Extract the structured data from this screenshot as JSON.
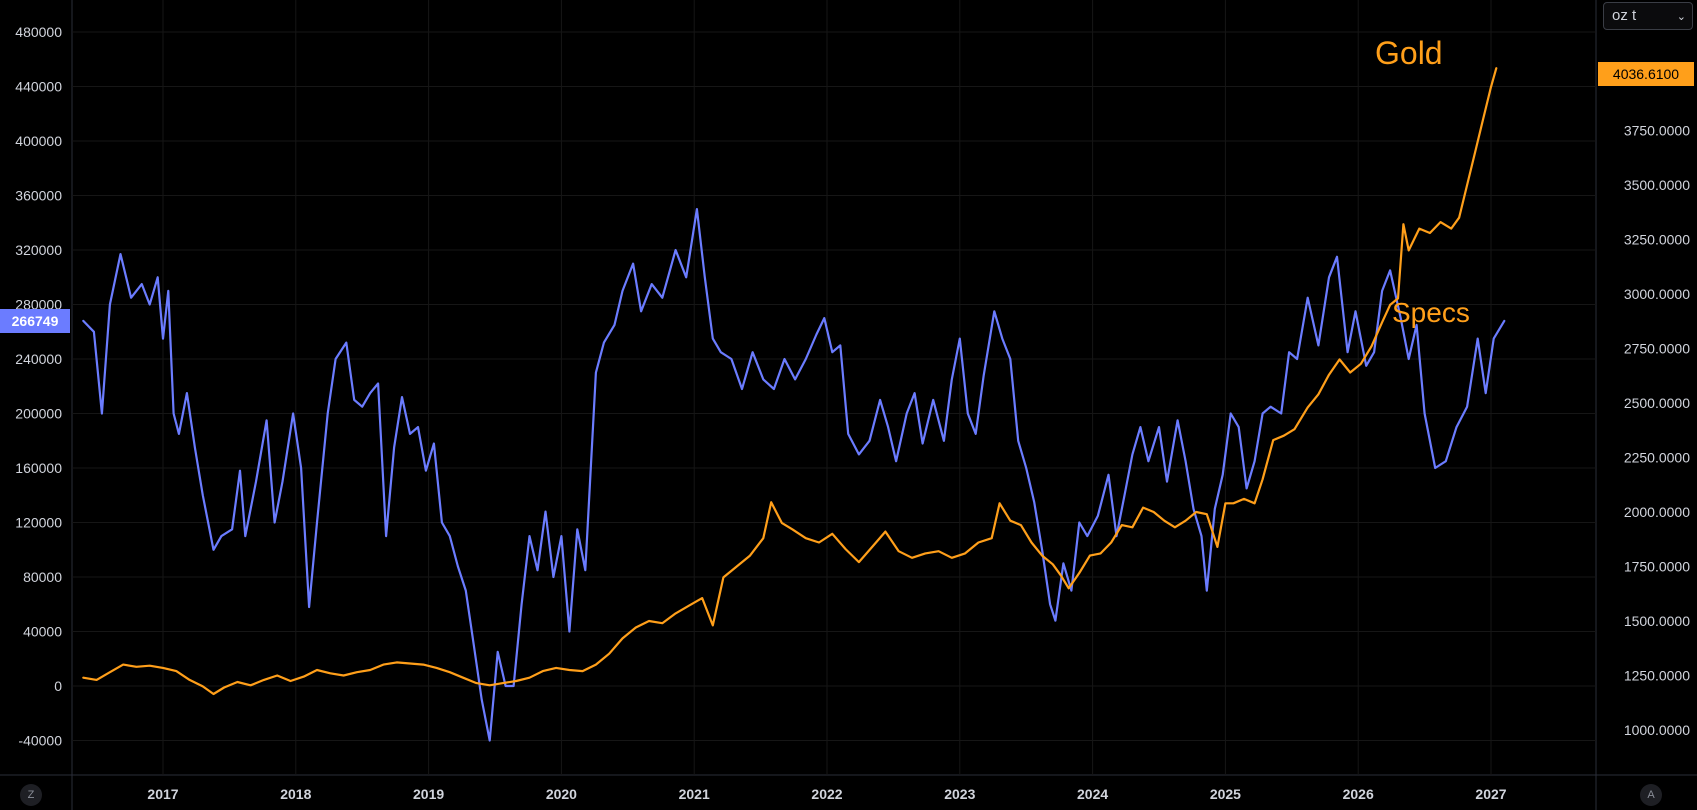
{
  "price_scale": {
    "unit_label": "oz t"
  },
  "annotations": {
    "gold_label": "Gold",
    "specs_label": "Specs"
  },
  "controls": {
    "left_corner": "Z",
    "right_corner": "A"
  },
  "colors": {
    "background": "#000000",
    "gold": "#ff9f1a",
    "specs": "#6b7cff",
    "grid": "#1a1a1a",
    "text": "#d1d4dc"
  },
  "chart_data": {
    "type": "line",
    "x_ticks": [
      "2017",
      "2018",
      "2019",
      "2020",
      "2021",
      "2022",
      "2023",
      "2024",
      "2025",
      "2026",
      "2027"
    ],
    "left_axis": {
      "ticks": [
        "480000",
        "440000",
        "400000",
        "360000",
        "320000",
        "280000",
        "240000",
        "200000",
        "160000",
        "120000",
        "80000",
        "40000",
        "0",
        "-40000"
      ],
      "ylim": [
        -40000,
        480000
      ],
      "last_value_label": "266749"
    },
    "right_axis": {
      "ticks": [
        "3750.0000",
        "3500.0000",
        "3250.0000",
        "3000.0000",
        "2750.0000",
        "2500.0000",
        "2250.0000",
        "2000.0000",
        "1750.0000",
        "1500.0000",
        "1250.0000",
        "1000.0000"
      ],
      "ylim": [
        1000,
        4000
      ],
      "last_value_label": "4036.6100"
    },
    "series": [
      {
        "name": "Specs",
        "axis": "left",
        "points": [
          [
            2016.4,
            268000
          ],
          [
            2016.48,
            260000
          ],
          [
            2016.54,
            200000
          ],
          [
            2016.6,
            280000
          ],
          [
            2016.68,
            317000
          ],
          [
            2016.76,
            285000
          ],
          [
            2016.84,
            295000
          ],
          [
            2016.9,
            280000
          ],
          [
            2016.96,
            300000
          ],
          [
            2017.0,
            255000
          ],
          [
            2017.04,
            290000
          ],
          [
            2017.08,
            200000
          ],
          [
            2017.12,
            185000
          ],
          [
            2017.18,
            215000
          ],
          [
            2017.24,
            175000
          ],
          [
            2017.3,
            140000
          ],
          [
            2017.38,
            100000
          ],
          [
            2017.44,
            110000
          ],
          [
            2017.52,
            115000
          ],
          [
            2017.58,
            158000
          ],
          [
            2017.62,
            110000
          ],
          [
            2017.7,
            150000
          ],
          [
            2017.78,
            195000
          ],
          [
            2017.84,
            120000
          ],
          [
            2017.9,
            150000
          ],
          [
            2017.98,
            200000
          ],
          [
            2018.04,
            160000
          ],
          [
            2018.1,
            58000
          ],
          [
            2018.16,
            120000
          ],
          [
            2018.24,
            200000
          ],
          [
            2018.3,
            240000
          ],
          [
            2018.38,
            252000
          ],
          [
            2018.44,
            210000
          ],
          [
            2018.5,
            205000
          ],
          [
            2018.56,
            215000
          ],
          [
            2018.62,
            222000
          ],
          [
            2018.68,
            110000
          ],
          [
            2018.74,
            175000
          ],
          [
            2018.8,
            212000
          ],
          [
            2018.86,
            185000
          ],
          [
            2018.92,
            190000
          ],
          [
            2018.98,
            158000
          ],
          [
            2019.04,
            178000
          ],
          [
            2019.1,
            120000
          ],
          [
            2019.16,
            110000
          ],
          [
            2019.22,
            88000
          ],
          [
            2019.28,
            70000
          ],
          [
            2019.34,
            30000
          ],
          [
            2019.4,
            -10000
          ],
          [
            2019.46,
            -40000
          ],
          [
            2019.52,
            25000
          ],
          [
            2019.58,
            0
          ],
          [
            2019.64,
            0
          ],
          [
            2019.7,
            60000
          ],
          [
            2019.76,
            110000
          ],
          [
            2019.82,
            85000
          ],
          [
            2019.88,
            128000
          ],
          [
            2019.94,
            80000
          ],
          [
            2020.0,
            110000
          ],
          [
            2020.06,
            40000
          ],
          [
            2020.12,
            115000
          ],
          [
            2020.18,
            85000
          ],
          [
            2020.26,
            230000
          ],
          [
            2020.32,
            252000
          ],
          [
            2020.4,
            265000
          ],
          [
            2020.46,
            290000
          ],
          [
            2020.54,
            310000
          ],
          [
            2020.6,
            275000
          ],
          [
            2020.68,
            295000
          ],
          [
            2020.76,
            285000
          ],
          [
            2020.86,
            320000
          ],
          [
            2020.94,
            300000
          ],
          [
            2021.02,
            350000
          ],
          [
            2021.08,
            300000
          ],
          [
            2021.14,
            255000
          ],
          [
            2021.2,
            245000
          ],
          [
            2021.28,
            240000
          ],
          [
            2021.36,
            218000
          ],
          [
            2021.44,
            245000
          ],
          [
            2021.52,
            225000
          ],
          [
            2021.6,
            218000
          ],
          [
            2021.68,
            240000
          ],
          [
            2021.76,
            225000
          ],
          [
            2021.84,
            240000
          ],
          [
            2021.92,
            258000
          ],
          [
            2021.98,
            270000
          ],
          [
            2022.04,
            245000
          ],
          [
            2022.1,
            250000
          ],
          [
            2022.16,
            185000
          ],
          [
            2022.24,
            170000
          ],
          [
            2022.32,
            180000
          ],
          [
            2022.4,
            210000
          ],
          [
            2022.46,
            190000
          ],
          [
            2022.52,
            165000
          ],
          [
            2022.6,
            200000
          ],
          [
            2022.66,
            215000
          ],
          [
            2022.72,
            178000
          ],
          [
            2022.8,
            210000
          ],
          [
            2022.88,
            180000
          ],
          [
            2022.94,
            225000
          ],
          [
            2023.0,
            255000
          ],
          [
            2023.06,
            200000
          ],
          [
            2023.12,
            185000
          ],
          [
            2023.18,
            228000
          ],
          [
            2023.26,
            275000
          ],
          [
            2023.32,
            255000
          ],
          [
            2023.38,
            240000
          ],
          [
            2023.44,
            180000
          ],
          [
            2023.5,
            160000
          ],
          [
            2023.56,
            135000
          ],
          [
            2023.62,
            100000
          ],
          [
            2023.68,
            60000
          ],
          [
            2023.72,
            48000
          ],
          [
            2023.78,
            90000
          ],
          [
            2023.84,
            70000
          ],
          [
            2023.9,
            120000
          ],
          [
            2023.96,
            110000
          ],
          [
            2024.04,
            125000
          ],
          [
            2024.12,
            155000
          ],
          [
            2024.18,
            110000
          ],
          [
            2024.24,
            140000
          ],
          [
            2024.3,
            170000
          ],
          [
            2024.36,
            190000
          ],
          [
            2024.42,
            165000
          ],
          [
            2024.5,
            190000
          ],
          [
            2024.56,
            150000
          ],
          [
            2024.64,
            195000
          ],
          [
            2024.7,
            165000
          ],
          [
            2024.76,
            130000
          ],
          [
            2024.82,
            110000
          ],
          [
            2024.86,
            70000
          ],
          [
            2024.92,
            130000
          ],
          [
            2024.98,
            155000
          ],
          [
            2025.04,
            200000
          ],
          [
            2025.1,
            190000
          ],
          [
            2025.16,
            145000
          ],
          [
            2025.22,
            165000
          ],
          [
            2025.28,
            200000
          ],
          [
            2025.34,
            205000
          ],
          [
            2025.42,
            200000
          ],
          [
            2025.48,
            245000
          ],
          [
            2025.54,
            240000
          ],
          [
            2025.62,
            285000
          ],
          [
            2025.7,
            250000
          ],
          [
            2025.78,
            300000
          ],
          [
            2025.84,
            315000
          ],
          [
            2025.92,
            245000
          ],
          [
            2025.98,
            275000
          ],
          [
            2026.06,
            235000
          ],
          [
            2026.12,
            245000
          ],
          [
            2026.18,
            290000
          ],
          [
            2026.24,
            305000
          ],
          [
            2026.32,
            270000
          ],
          [
            2026.38,
            240000
          ],
          [
            2026.44,
            265000
          ],
          [
            2026.5,
            200000
          ],
          [
            2026.58,
            160000
          ],
          [
            2026.66,
            165000
          ],
          [
            2026.74,
            190000
          ],
          [
            2026.82,
            205000
          ],
          [
            2026.9,
            255000
          ],
          [
            2026.96,
            215000
          ],
          [
            2027.02,
            255000
          ],
          [
            2027.1,
            268000
          ]
        ]
      },
      {
        "name": "Gold",
        "axis": "right",
        "points": [
          [
            2016.4,
            1240
          ],
          [
            2016.5,
            1230
          ],
          [
            2016.6,
            1265
          ],
          [
            2016.7,
            1300
          ],
          [
            2016.8,
            1290
          ],
          [
            2016.9,
            1295
          ],
          [
            2017.0,
            1285
          ],
          [
            2017.1,
            1270
          ],
          [
            2017.2,
            1230
          ],
          [
            2017.3,
            1200
          ],
          [
            2017.38,
            1165
          ],
          [
            2017.46,
            1195
          ],
          [
            2017.56,
            1220
          ],
          [
            2017.66,
            1205
          ],
          [
            2017.76,
            1230
          ],
          [
            2017.86,
            1250
          ],
          [
            2017.96,
            1225
          ],
          [
            2018.06,
            1245
          ],
          [
            2018.16,
            1275
          ],
          [
            2018.26,
            1260
          ],
          [
            2018.36,
            1250
          ],
          [
            2018.46,
            1265
          ],
          [
            2018.56,
            1275
          ],
          [
            2018.66,
            1300
          ],
          [
            2018.76,
            1310
          ],
          [
            2018.86,
            1305
          ],
          [
            2018.96,
            1300
          ],
          [
            2019.06,
            1285
          ],
          [
            2019.16,
            1265
          ],
          [
            2019.26,
            1240
          ],
          [
            2019.36,
            1215
          ],
          [
            2019.46,
            1205
          ],
          [
            2019.56,
            1215
          ],
          [
            2019.66,
            1225
          ],
          [
            2019.76,
            1240
          ],
          [
            2019.86,
            1270
          ],
          [
            2019.96,
            1285
          ],
          [
            2020.06,
            1275
          ],
          [
            2020.16,
            1270
          ],
          [
            2020.26,
            1300
          ],
          [
            2020.36,
            1350
          ],
          [
            2020.46,
            1420
          ],
          [
            2020.56,
            1470
          ],
          [
            2020.66,
            1500
          ],
          [
            2020.76,
            1490
          ],
          [
            2020.86,
            1535
          ],
          [
            2020.96,
            1570
          ],
          [
            2021.06,
            1605
          ],
          [
            2021.14,
            1480
          ],
          [
            2021.22,
            1700
          ],
          [
            2021.32,
            1750
          ],
          [
            2021.42,
            1800
          ],
          [
            2021.52,
            1880
          ],
          [
            2021.58,
            2045
          ],
          [
            2021.66,
            1950
          ],
          [
            2021.74,
            1920
          ],
          [
            2021.84,
            1880
          ],
          [
            2021.94,
            1860
          ],
          [
            2022.04,
            1900
          ],
          [
            2022.14,
            1830
          ],
          [
            2022.24,
            1770
          ],
          [
            2022.34,
            1840
          ],
          [
            2022.44,
            1910
          ],
          [
            2022.54,
            1820
          ],
          [
            2022.64,
            1790
          ],
          [
            2022.74,
            1810
          ],
          [
            2022.84,
            1820
          ],
          [
            2022.94,
            1790
          ],
          [
            2023.04,
            1810
          ],
          [
            2023.14,
            1860
          ],
          [
            2023.24,
            1880
          ],
          [
            2023.3,
            2040
          ],
          [
            2023.38,
            1960
          ],
          [
            2023.46,
            1940
          ],
          [
            2023.54,
            1860
          ],
          [
            2023.62,
            1800
          ],
          [
            2023.7,
            1760
          ],
          [
            2023.76,
            1710
          ],
          [
            2023.82,
            1650
          ],
          [
            2023.9,
            1720
          ],
          [
            2023.98,
            1800
          ],
          [
            2024.06,
            1810
          ],
          [
            2024.14,
            1860
          ],
          [
            2024.22,
            1940
          ],
          [
            2024.3,
            1930
          ],
          [
            2024.38,
            2020
          ],
          [
            2024.46,
            2000
          ],
          [
            2024.54,
            1960
          ],
          [
            2024.62,
            1930
          ],
          [
            2024.7,
            1960
          ],
          [
            2024.78,
            2000
          ],
          [
            2024.86,
            1990
          ],
          [
            2024.94,
            1840
          ],
          [
            2025.0,
            2040
          ],
          [
            2025.06,
            2040
          ],
          [
            2025.14,
            2060
          ],
          [
            2025.22,
            2040
          ],
          [
            2025.28,
            2150
          ],
          [
            2025.36,
            2330
          ],
          [
            2025.44,
            2350
          ],
          [
            2025.52,
            2380
          ],
          [
            2025.62,
            2480
          ],
          [
            2025.7,
            2540
          ],
          [
            2025.78,
            2630
          ],
          [
            2025.86,
            2700
          ],
          [
            2025.94,
            2640
          ],
          [
            2026.02,
            2680
          ],
          [
            2026.1,
            2760
          ],
          [
            2026.18,
            2870
          ],
          [
            2026.24,
            2950
          ],
          [
            2026.3,
            2980
          ],
          [
            2026.34,
            3320
          ],
          [
            2026.38,
            3200
          ],
          [
            2026.46,
            3300
          ],
          [
            2026.54,
            3280
          ],
          [
            2026.62,
            3330
          ],
          [
            2026.7,
            3300
          ],
          [
            2026.76,
            3350
          ],
          [
            2026.82,
            3500
          ],
          [
            2026.88,
            3650
          ],
          [
            2026.94,
            3800
          ],
          [
            2027.0,
            3950
          ],
          [
            2027.04,
            4036
          ]
        ]
      }
    ]
  }
}
